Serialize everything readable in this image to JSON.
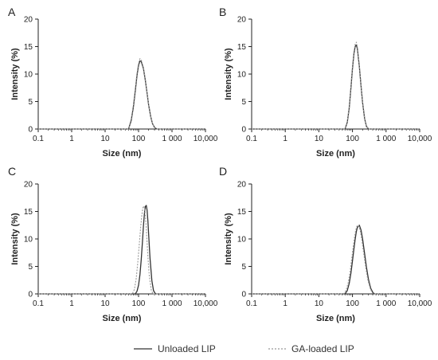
{
  "chart_data": [
    {
      "type": "line",
      "panel_label": "A",
      "xlabel": "Size (nm)",
      "ylabel": "Intensity (%)",
      "xscale": "log",
      "xlim": [
        0.1,
        10000
      ],
      "ylim": [
        0,
        20
      ],
      "xticks": [
        0.1,
        1,
        10,
        100,
        1000,
        10000
      ],
      "xtick_labels": [
        "0.1",
        "1",
        "10",
        "100",
        "1 000",
        "10,000"
      ],
      "yticks": [
        0,
        5,
        10,
        15,
        20
      ],
      "ytick_labels": [
        "0",
        "5",
        "10",
        "15",
        "20"
      ],
      "series": [
        {
          "name": "Unloaded LIP",
          "style": "solid",
          "x": [
            50,
            60,
            70,
            80,
            90,
            100,
            110,
            120,
            140,
            160,
            180,
            200,
            230,
            260,
            300,
            350
          ],
          "y": [
            0,
            1.5,
            4.0,
            7.0,
            9.8,
            11.6,
            12.4,
            12.3,
            11.0,
            8.8,
            6.5,
            4.4,
            2.3,
            1.0,
            0.3,
            0
          ]
        },
        {
          "name": "GA-loaded LIP",
          "style": "dotted",
          "x": [
            50,
            60,
            70,
            80,
            90,
            100,
            110,
            120,
            140,
            160,
            180,
            200,
            230,
            260,
            300,
            350
          ],
          "y": [
            0,
            1.8,
            4.4,
            7.5,
            10.2,
            12.0,
            12.8,
            12.6,
            11.2,
            9.0,
            6.6,
            4.5,
            2.4,
            1.0,
            0.3,
            0
          ]
        }
      ]
    },
    {
      "type": "line",
      "panel_label": "B",
      "xlabel": "Size (nm)",
      "ylabel": "Intensity (%)",
      "xscale": "log",
      "xlim": [
        0.1,
        10000
      ],
      "ylim": [
        0,
        20
      ],
      "xticks": [
        0.1,
        1,
        10,
        100,
        1000,
        10000
      ],
      "xtick_labels": [
        "0.1",
        "1",
        "10",
        "100",
        "1 000",
        "10,000"
      ],
      "yticks": [
        0,
        5,
        10,
        15,
        20
      ],
      "ytick_labels": [
        "0",
        "5",
        "10",
        "15",
        "20"
      ],
      "series": [
        {
          "name": "Unloaded LIP",
          "style": "solid",
          "x": [
            60,
            70,
            80,
            90,
            100,
            110,
            120,
            130,
            140,
            160,
            180,
            200,
            230,
            260,
            300
          ],
          "y": [
            0,
            1.2,
            3.8,
            7.5,
            11.0,
            13.6,
            15.0,
            15.3,
            14.6,
            11.4,
            7.8,
            4.8,
            1.9,
            0.5,
            0
          ]
        },
        {
          "name": "GA-loaded LIP",
          "style": "dotted",
          "x": [
            60,
            70,
            80,
            90,
            100,
            110,
            120,
            130,
            140,
            160,
            180,
            200,
            230,
            260,
            300
          ],
          "y": [
            0,
            1.4,
            4.1,
            7.9,
            11.4,
            14.0,
            15.4,
            15.8,
            15.0,
            11.6,
            7.9,
            4.9,
            2.0,
            0.5,
            0
          ]
        }
      ]
    },
    {
      "type": "line",
      "panel_label": "C",
      "xlabel": "Size (nm)",
      "ylabel": "Intensity (%)",
      "xscale": "log",
      "xlim": [
        0.1,
        10000
      ],
      "ylim": [
        0,
        20
      ],
      "xticks": [
        0.1,
        1,
        10,
        100,
        1000,
        10000
      ],
      "xtick_labels": [
        "0.1",
        "1",
        "10",
        "100",
        "1 000",
        "10,000"
      ],
      "yticks": [
        0,
        5,
        10,
        15,
        20
      ],
      "ytick_labels": [
        "0",
        "5",
        "10",
        "15",
        "20"
      ],
      "series": [
        {
          "name": "Unloaded LIP",
          "style": "solid",
          "x": [
            80,
            90,
            100,
            110,
            120,
            130,
            140,
            150,
            160,
            170,
            180,
            190,
            200,
            220,
            250,
            280,
            320
          ],
          "y": [
            0,
            0.5,
            1.6,
            3.5,
            6.2,
            9.3,
            12.4,
            14.7,
            15.9,
            16.1,
            15.2,
            13.3,
            10.9,
            6.5,
            2.4,
            0.6,
            0
          ]
        },
        {
          "name": "GA-loaded LIP",
          "style": "dotted",
          "x": [
            65,
            75,
            85,
            95,
            105,
            115,
            125,
            135,
            145,
            155,
            165,
            175,
            190,
            210,
            240,
            270
          ],
          "y": [
            0,
            0.8,
            2.8,
            5.8,
            9.0,
            12.0,
            14.3,
            15.7,
            16.0,
            15.1,
            13.2,
            10.6,
            6.8,
            3.2,
            0.7,
            0
          ]
        }
      ]
    },
    {
      "type": "line",
      "panel_label": "D",
      "xlabel": "Size (nm)",
      "ylabel": "Intensity (%)",
      "xscale": "log",
      "xlim": [
        0.1,
        10000
      ],
      "ylim": [
        0,
        20
      ],
      "xticks": [
        0.1,
        1,
        10,
        100,
        1000,
        10000
      ],
      "xtick_labels": [
        "0.1",
        "1",
        "10",
        "100",
        "1 000",
        "10,000"
      ],
      "yticks": [
        0,
        5,
        10,
        15,
        20
      ],
      "ytick_labels": [
        "0",
        "5",
        "10",
        "15",
        "20"
      ],
      "series": [
        {
          "name": "Unloaded LIP",
          "style": "solid",
          "x": [
            60,
            70,
            80,
            90,
            100,
            110,
            120,
            130,
            140,
            160,
            180,
            200,
            230,
            260,
            300,
            350,
            400,
            450
          ],
          "y": [
            0,
            0.6,
            1.9,
            3.8,
            6.0,
            8.1,
            9.9,
            11.3,
            12.1,
            12.5,
            11.6,
            10.0,
            7.3,
            4.9,
            2.6,
            1.0,
            0.3,
            0
          ]
        },
        {
          "name": "GA-loaded LIP",
          "style": "dotted",
          "x": [
            55,
            65,
            75,
            85,
            95,
            105,
            115,
            125,
            135,
            150,
            170,
            190,
            220,
            250,
            290,
            340,
            390,
            440
          ],
          "y": [
            0,
            0.7,
            2.1,
            4.1,
            6.4,
            8.6,
            10.3,
            11.6,
            12.3,
            12.5,
            11.5,
            9.8,
            7.0,
            4.6,
            2.4,
            0.9,
            0.2,
            0
          ]
        }
      ]
    }
  ],
  "legend": {
    "position": "bottom-center",
    "items": [
      {
        "label": "Unloaded LIP",
        "style": "solid"
      },
      {
        "label": "GA-loaded LIP",
        "style": "dotted"
      }
    ]
  },
  "colors": {
    "axis": "#222222",
    "unloaded": "#333333",
    "ga_loaded": "#9a9a9a"
  }
}
